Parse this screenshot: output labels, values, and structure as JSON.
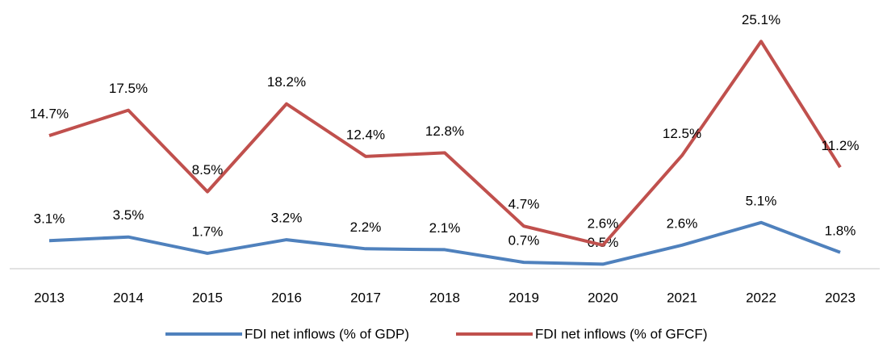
{
  "chart_data": {
    "type": "line",
    "categories": [
      "2013",
      "2014",
      "2015",
      "2016",
      "2017",
      "2018",
      "2019",
      "2020",
      "2021",
      "2022",
      "2023"
    ],
    "series": [
      {
        "name": "FDI net inflows (% of GDP)",
        "color": "#4f81bd",
        "values": [
          3.1,
          3.5,
          1.7,
          3.2,
          2.2,
          2.1,
          0.7,
          0.5,
          2.6,
          5.1,
          1.8
        ],
        "value_labels": [
          "3.1%",
          "3.5%",
          "1.7%",
          "3.2%",
          "2.2%",
          "2.1%",
          "0.7%",
          "0.5%",
          "2.6%",
          "5.1%",
          "1.8%"
        ]
      },
      {
        "name": "FDI net inflows (% of GFCF)",
        "color": "#c0504d",
        "values": [
          14.7,
          17.5,
          8.5,
          18.2,
          12.4,
          12.8,
          4.7,
          2.6,
          12.5,
          25.1,
          11.2
        ],
        "value_labels": [
          "14.7%",
          "17.5%",
          "8.5%",
          "18.2%",
          "12.4%",
          "12.8%",
          "4.7%",
          "2.6%",
          "12.5%",
          "25.1%",
          "11.2%"
        ]
      }
    ],
    "ylim": [
      0,
      27
    ]
  }
}
